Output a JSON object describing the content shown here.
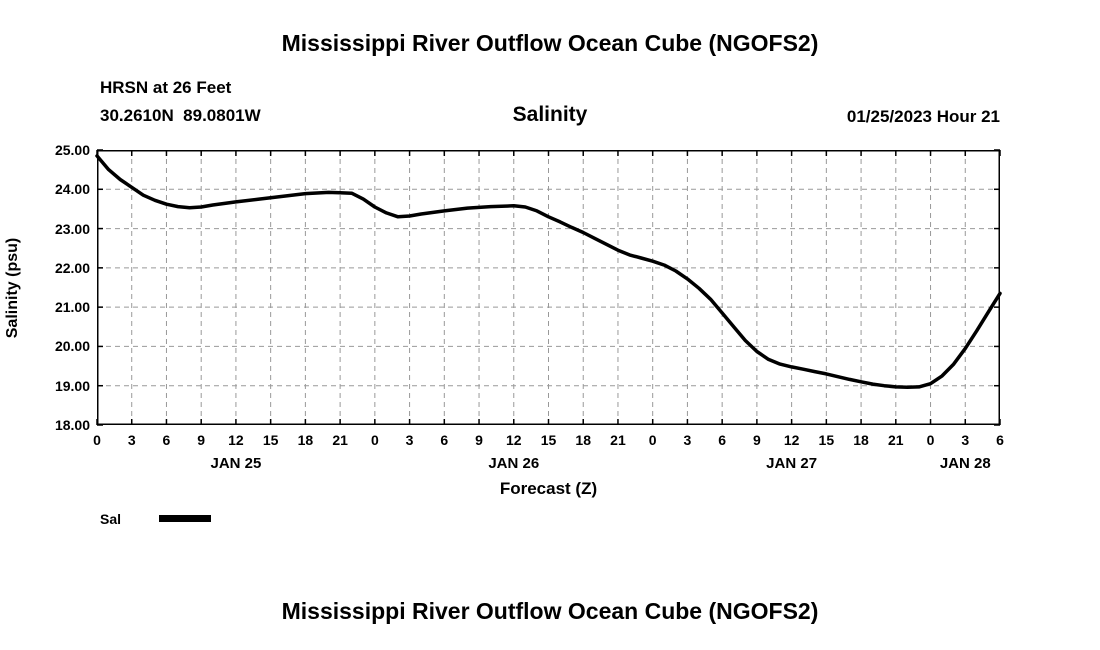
{
  "page": {
    "top_title": "Mississippi River Outflow Ocean Cube (NGOFS2)",
    "bottom_title": "Mississippi River Outflow Ocean Cube (NGOFS2)"
  },
  "chart_data": {
    "type": "line",
    "title": "Salinity",
    "station": "HRSN at 26 Feet",
    "location": "30.2610N  89.0801W",
    "datetime": "01/25/2023 Hour 21",
    "xlabel": "Forecast (Z)",
    "ylabel": "Salinity (psu)",
    "xlim": [
      0,
      78
    ],
    "ylim": [
      18.0,
      25.0
    ],
    "xtick_step": 3,
    "ytick_step": 1.0,
    "xtick_labels": [
      "0",
      "3",
      "6",
      "9",
      "12",
      "15",
      "18",
      "21",
      "0",
      "3",
      "6",
      "9",
      "12",
      "15",
      "18",
      "21",
      "0",
      "3",
      "6",
      "9",
      "12",
      "15",
      "18",
      "21",
      "0",
      "3",
      "6"
    ],
    "ytick_labels": [
      "18.00",
      "19.00",
      "20.00",
      "21.00",
      "22.00",
      "23.00",
      "24.00",
      "25.00"
    ],
    "day_labels": [
      {
        "label": "JAN 25",
        "hour": 12
      },
      {
        "label": "JAN 26",
        "hour": 36
      },
      {
        "label": "JAN 27",
        "hour": 60
      },
      {
        "label": "JAN 28",
        "hour": 75
      }
    ],
    "grid": "dashed",
    "grid_color": "#999999",
    "line_color": "#000000",
    "legend": {
      "label": "Sal",
      "color": "#000000"
    },
    "series": [
      {
        "name": "Sal",
        "x": [
          0,
          1,
          2,
          3,
          4,
          5,
          6,
          7,
          8,
          9,
          10,
          12,
          14,
          16,
          18,
          20,
          21,
          22,
          23,
          24,
          25,
          26,
          27,
          28,
          30,
          32,
          34,
          36,
          37,
          38,
          39,
          40,
          41,
          42,
          43,
          44,
          45,
          46,
          47,
          48,
          49,
          50,
          51,
          52,
          53,
          54,
          55,
          56,
          57,
          58,
          59,
          60,
          61,
          62,
          63,
          64,
          65,
          66,
          67,
          68,
          69,
          70,
          71,
          72,
          73,
          74,
          75,
          76,
          77,
          78
        ],
        "y": [
          24.85,
          24.5,
          24.25,
          24.05,
          23.85,
          23.72,
          23.62,
          23.56,
          23.53,
          23.55,
          23.6,
          23.68,
          23.75,
          23.82,
          23.89,
          23.92,
          23.91,
          23.9,
          23.75,
          23.55,
          23.4,
          23.3,
          23.32,
          23.37,
          23.45,
          23.52,
          23.56,
          23.58,
          23.55,
          23.45,
          23.3,
          23.17,
          23.03,
          22.9,
          22.75,
          22.6,
          22.45,
          22.33,
          22.25,
          22.17,
          22.07,
          21.92,
          21.72,
          21.48,
          21.2,
          20.85,
          20.5,
          20.15,
          19.87,
          19.67,
          19.55,
          19.48,
          19.42,
          19.36,
          19.3,
          19.23,
          19.16,
          19.1,
          19.04,
          19.0,
          18.97,
          18.96,
          18.97,
          19.05,
          19.25,
          19.55,
          19.95,
          20.4,
          20.88,
          21.35
        ]
      }
    ]
  }
}
